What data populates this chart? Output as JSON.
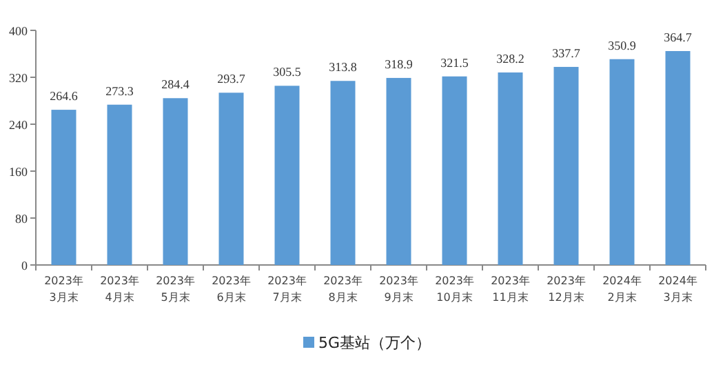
{
  "chart_data": {
    "type": "bar",
    "categories": [
      "2023年3月末",
      "2023年4月末",
      "2023年5月末",
      "2023年6月末",
      "2023年7月末",
      "2023年8月末",
      "2023年9月末",
      "2023年10月末",
      "2023年11月末",
      "2023年12月末",
      "2024年2月末",
      "2024年3月末"
    ],
    "series": [
      {
        "name": "5G基站（万个）",
        "color": "#5b9bd5",
        "values": [
          264.6,
          273.3,
          284.4,
          293.7,
          305.5,
          313.8,
          318.9,
          321.5,
          328.2,
          337.7,
          350.9,
          364.7
        ]
      }
    ],
    "ylim": [
      0,
      400
    ],
    "yticks": [
      0,
      80,
      160,
      240,
      320,
      400
    ],
    "data_labels": true,
    "legend": "bottom",
    "grid": false
  }
}
